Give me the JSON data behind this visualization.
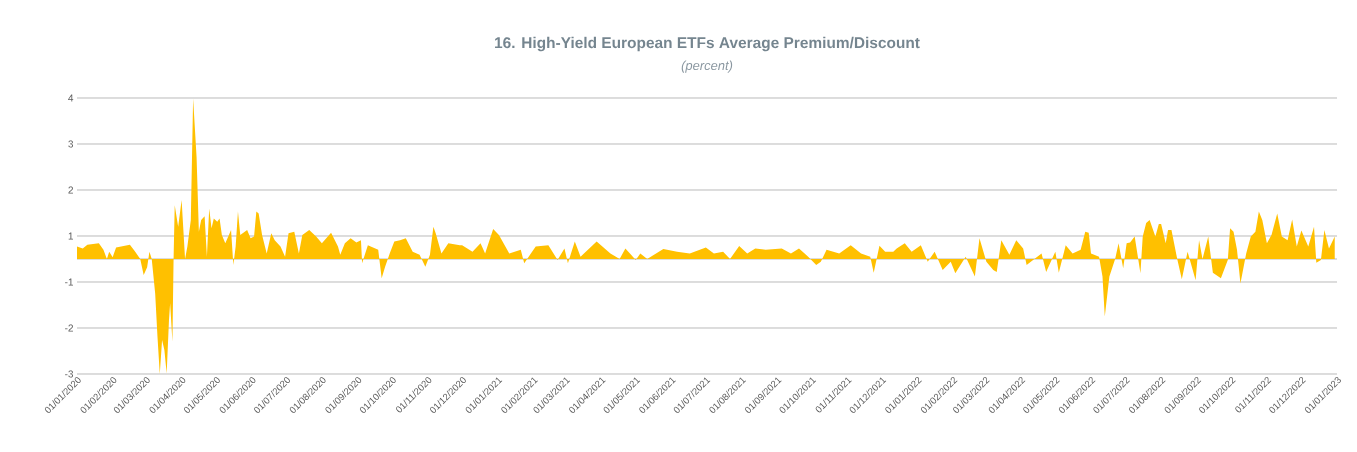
{
  "chart_data": {
    "type": "area",
    "title": "16. High-Yield European ETFs Average Premium/Discount",
    "subtitle": "(percent)",
    "color": "#ffc000",
    "grid": "y",
    "xlim": [
      "2020-01-01",
      "2023-01-01"
    ],
    "ylim": [
      -2.5,
      3.5
    ],
    "yticks": [
      {
        "value": 3.5,
        "label": "4"
      },
      {
        "value": 2.5,
        "label": "3"
      },
      {
        "value": 1.5,
        "label": "2"
      },
      {
        "value": 0.5,
        "label": "1"
      },
      {
        "value": 0,
        "label": null
      },
      {
        "value": -0.5,
        "label": "-1"
      },
      {
        "value": -1.5,
        "label": "-2"
      },
      {
        "value": -2.5,
        "label": "-3"
      }
    ],
    "xticks": [
      {
        "value": "2020-01-01",
        "label": "01/01/2020"
      },
      {
        "value": "2020-02-01",
        "label": "01/02/2020"
      },
      {
        "value": "2020-03-01",
        "label": "01/03/2020"
      },
      {
        "value": "2020-04-01",
        "label": "01/04/2020"
      },
      {
        "value": "2020-05-01",
        "label": "01/05/2020"
      },
      {
        "value": "2020-06-01",
        "label": "01/06/2020"
      },
      {
        "value": "2020-07-01",
        "label": "01/07/2020"
      },
      {
        "value": "2020-08-01",
        "label": "01/08/2020"
      },
      {
        "value": "2020-09-01",
        "label": "01/09/2020"
      },
      {
        "value": "2020-10-01",
        "label": "01/10/2020"
      },
      {
        "value": "2020-11-01",
        "label": "01/11/2020"
      },
      {
        "value": "2020-12-01",
        "label": "01/12/2020"
      },
      {
        "value": "2021-01-01",
        "label": "01/01/2021"
      },
      {
        "value": "2021-02-01",
        "label": "01/02/2021"
      },
      {
        "value": "2021-03-01",
        "label": "01/03/2021"
      },
      {
        "value": "2021-04-01",
        "label": "01/04/2021"
      },
      {
        "value": "2021-05-01",
        "label": "01/05/2021"
      },
      {
        "value": "2021-06-01",
        "label": "01/06/2021"
      },
      {
        "value": "2021-07-01",
        "label": "01/07/2021"
      },
      {
        "value": "2021-08-01",
        "label": "01/08/2021"
      },
      {
        "value": "2021-09-01",
        "label": "01/09/2021"
      },
      {
        "value": "2021-10-01",
        "label": "01/10/2021"
      },
      {
        "value": "2021-11-01",
        "label": "01/11/2021"
      },
      {
        "value": "2021-12-01",
        "label": "01/12/2021"
      },
      {
        "value": "2022-01-01",
        "label": "01/01/2022"
      },
      {
        "value": "2022-02-01",
        "label": "01/02/2022"
      },
      {
        "value": "2022-03-01",
        "label": "01/03/2022"
      },
      {
        "value": "2022-04-01",
        "label": "01/04/2022"
      },
      {
        "value": "2022-05-01",
        "label": "01/05/2022"
      },
      {
        "value": "2022-06-01",
        "label": "01/06/2022"
      },
      {
        "value": "2022-07-01",
        "label": "01/07/2022"
      },
      {
        "value": "2022-08-01",
        "label": "01/08/2022"
      },
      {
        "value": "2022-09-01",
        "label": "01/09/2022"
      },
      {
        "value": "2022-10-01",
        "label": "01/10/2022"
      },
      {
        "value": "2022-11-01",
        "label": "01/11/2022"
      },
      {
        "value": "2022-12-01",
        "label": "01/12/2022"
      },
      {
        "value": "2023-01-01",
        "label": "01/01/2023"
      }
    ],
    "x": [
      "2020-01-01",
      "2020-01-06",
      "2020-01-10",
      "2020-01-20",
      "2020-01-24",
      "2020-01-27",
      "2020-01-29",
      "2020-02-01",
      "2020-02-04",
      "2020-02-16",
      "2020-02-20",
      "2020-02-25",
      "2020-02-28",
      "2020-03-02",
      "2020-03-04",
      "2020-03-06",
      "2020-03-09",
      "2020-03-11",
      "2020-03-13",
      "2020-03-15",
      "2020-03-17",
      "2020-03-19",
      "2020-03-21",
      "2020-03-22",
      "2020-03-24",
      "2020-03-25",
      "2020-03-26",
      "2020-03-29",
      "2020-04-01",
      "2020-04-04",
      "2020-04-06",
      "2020-04-09",
      "2020-04-11",
      "2020-04-14",
      "2020-04-16",
      "2020-04-18",
      "2020-04-21",
      "2020-04-23",
      "2020-04-25",
      "2020-04-27",
      "2020-04-29",
      "2020-05-02",
      "2020-05-04",
      "2020-05-06",
      "2020-05-09",
      "2020-05-14",
      "2020-05-16",
      "2020-05-18",
      "2020-05-20",
      "2020-05-22",
      "2020-05-28",
      "2020-05-31",
      "2020-06-03",
      "2020-06-05",
      "2020-06-07",
      "2020-06-10",
      "2020-06-14",
      "2020-06-18",
      "2020-06-21",
      "2020-06-26",
      "2020-06-30",
      "2020-07-03",
      "2020-07-08",
      "2020-07-12",
      "2020-07-15",
      "2020-07-21",
      "2020-07-27",
      "2020-08-01",
      "2020-08-09",
      "2020-08-15",
      "2020-08-17",
      "2020-08-21",
      "2020-08-26",
      "2020-08-31",
      "2020-09-04",
      "2020-09-05",
      "2020-09-10",
      "2020-09-19",
      "2020-09-22",
      "2020-09-25",
      "2020-09-29",
      "2020-10-03",
      "2020-10-08",
      "2020-10-13",
      "2020-10-19",
      "2020-10-25",
      "2020-10-30",
      "2020-11-03",
      "2020-11-06",
      "2020-11-08",
      "2020-11-13",
      "2020-11-19",
      "2020-11-29",
      "2020-12-01",
      "2020-12-10",
      "2020-12-17",
      "2020-12-21",
      "2020-12-28",
      "2021-01-02",
      "2021-01-11",
      "2021-01-21",
      "2021-01-24",
      "2021-02-03",
      "2021-02-14",
      "2021-02-22",
      "2021-02-28",
      "2021-03-03",
      "2021-03-09",
      "2021-03-14",
      "2021-03-28",
      "2021-04-09",
      "2021-04-17",
      "2021-04-22",
      "2021-05-01",
      "2021-05-05",
      "2021-05-11",
      "2021-05-25",
      "2021-06-06",
      "2021-06-17",
      "2021-07-01",
      "2021-07-08",
      "2021-07-16",
      "2021-07-22",
      "2021-07-30",
      "2021-08-06",
      "2021-08-13",
      "2021-08-22",
      "2021-09-05",
      "2021-09-13",
      "2021-09-20",
      "2021-09-28",
      "2021-10-05",
      "2021-10-09",
      "2021-10-14",
      "2021-10-25",
      "2021-11-04",
      "2021-11-13",
      "2021-11-21",
      "2021-11-24",
      "2021-11-29",
      "2021-12-04",
      "2021-12-11",
      "2021-12-14",
      "2021-12-21",
      "2021-12-27",
      "2022-01-04",
      "2022-01-10",
      "2022-01-16",
      "2022-01-23",
      "2022-01-30",
      "2022-02-03",
      "2022-02-12",
      "2022-02-20",
      "2022-02-24",
      "2022-03-02",
      "2022-03-08",
      "2022-03-11",
      "2022-03-15",
      "2022-03-22",
      "2022-03-28",
      "2022-04-03",
      "2022-04-06",
      "2022-04-19",
      "2022-04-23",
      "2022-05-01",
      "2022-05-04",
      "2022-05-10",
      "2022-05-16",
      "2022-05-23",
      "2022-05-27",
      "2022-05-30",
      "2022-06-01",
      "2022-06-08",
      "2022-06-11",
      "2022-06-13",
      "2022-06-17",
      "2022-06-22",
      "2022-06-25",
      "2022-06-29",
      "2022-07-02",
      "2022-07-05",
      "2022-07-09",
      "2022-07-14",
      "2022-07-16",
      "2022-07-19",
      "2022-07-22",
      "2022-07-27",
      "2022-07-30",
      "2022-08-01",
      "2022-08-05",
      "2022-08-07",
      "2022-08-10",
      "2022-08-15",
      "2022-08-19",
      "2022-08-24",
      "2022-08-31",
      "2022-09-03",
      "2022-09-06",
      "2022-09-11",
      "2022-09-15",
      "2022-09-22",
      "2022-09-28",
      "2022-09-30",
      "2022-10-03",
      "2022-10-06",
      "2022-10-09",
      "2022-10-14",
      "2022-10-18",
      "2022-10-22",
      "2022-10-25",
      "2022-10-28",
      "2022-11-01",
      "2022-11-05",
      "2022-11-10",
      "2022-11-14",
      "2022-11-19",
      "2022-11-23",
      "2022-11-27",
      "2022-12-01",
      "2022-12-07",
      "2022-12-12",
      "2022-12-14",
      "2022-12-18",
      "2022-12-21",
      "2022-12-25",
      "2022-12-30"
    ],
    "values": [
      0.27,
      0.23,
      0.31,
      0.34,
      0.2,
      0,
      0.16,
      0.04,
      0.25,
      0.31,
      0.18,
      0,
      -0.35,
      -0.18,
      0.16,
      0,
      -0.75,
      -1.69,
      -2.5,
      -1.76,
      -1.98,
      -2.49,
      -1.33,
      -0.96,
      -1.8,
      0,
      1.17,
      0.7,
      1.28,
      0,
      0.27,
      0.85,
      3.49,
      2.22,
      0.59,
      0.85,
      0.93,
      0.05,
      1.1,
      0.67,
      0.88,
      0.81,
      0.88,
      0.52,
      0.34,
      0.63,
      -0.13,
      0.27,
      1.03,
      0.52,
      0.63,
      0.45,
      0.49,
      1.03,
      0.99,
      0.52,
      0.12,
      0.56,
      0.41,
      0.27,
      0.05,
      0.56,
      0.59,
      0.12,
      0.52,
      0.63,
      0.49,
      0.34,
      0.57,
      0.27,
      0.09,
      0.34,
      0.45,
      0.36,
      0.41,
      -0.09,
      0.3,
      0.2,
      -0.42,
      -0.17,
      0.12,
      0.38,
      0.41,
      0.45,
      0.16,
      0.09,
      -0.17,
      0.09,
      0.7,
      0.56,
      0.12,
      0.34,
      0.3,
      0.3,
      0.16,
      0.34,
      0.12,
      0.65,
      0.52,
      0.12,
      0.2,
      -0.09,
      0.27,
      0.3,
      -0.02,
      0.23,
      -0.09,
      0.38,
      0.05,
      0.38,
      0.12,
      0,
      0.23,
      -0.02,
      0.12,
      0,
      0.22,
      0.16,
      0.12,
      0.25,
      0.12,
      0.16,
      0,
      0.28,
      0.12,
      0.23,
      0.2,
      0.23,
      0.12,
      0.23,
      0.05,
      -0.13,
      -0.06,
      0.2,
      0.12,
      0.3,
      0.12,
      0.05,
      -0.3,
      0.29,
      0.16,
      0.16,
      0.23,
      0.34,
      0.16,
      0.3,
      -0.06,
      0.16,
      -0.24,
      -0.06,
      -0.31,
      0.05,
      -0.38,
      0.45,
      -0.06,
      -0.24,
      -0.28,
      0.41,
      0.09,
      0.41,
      0.23,
      -0.13,
      0.12,
      -0.28,
      0.16,
      -0.3,
      0.3,
      0.12,
      0.2,
      0.59,
      0.57,
      0.12,
      0.05,
      -0.38,
      -1.25,
      -0.38,
      0,
      0.34,
      -0.2,
      0.34,
      0.36,
      0.49,
      -0.31,
      0.49,
      0.78,
      0.85,
      0.49,
      0.76,
      0.76,
      0.34,
      0.63,
      0.63,
      0,
      -0.44,
      0.16,
      -0.46,
      0.41,
      0,
      0.49,
      -0.3,
      -0.42,
      -0.02,
      0.67,
      0.59,
      0.2,
      -0.53,
      0.12,
      0.49,
      0.59,
      1.03,
      0.85,
      0.34,
      0.52,
      0.99,
      0.49,
      0.41,
      0.86,
      0.27,
      0.62,
      0.27,
      0.7,
      -0.08,
      -0.02,
      0.63,
      0.23,
      0.49
    ]
  }
}
